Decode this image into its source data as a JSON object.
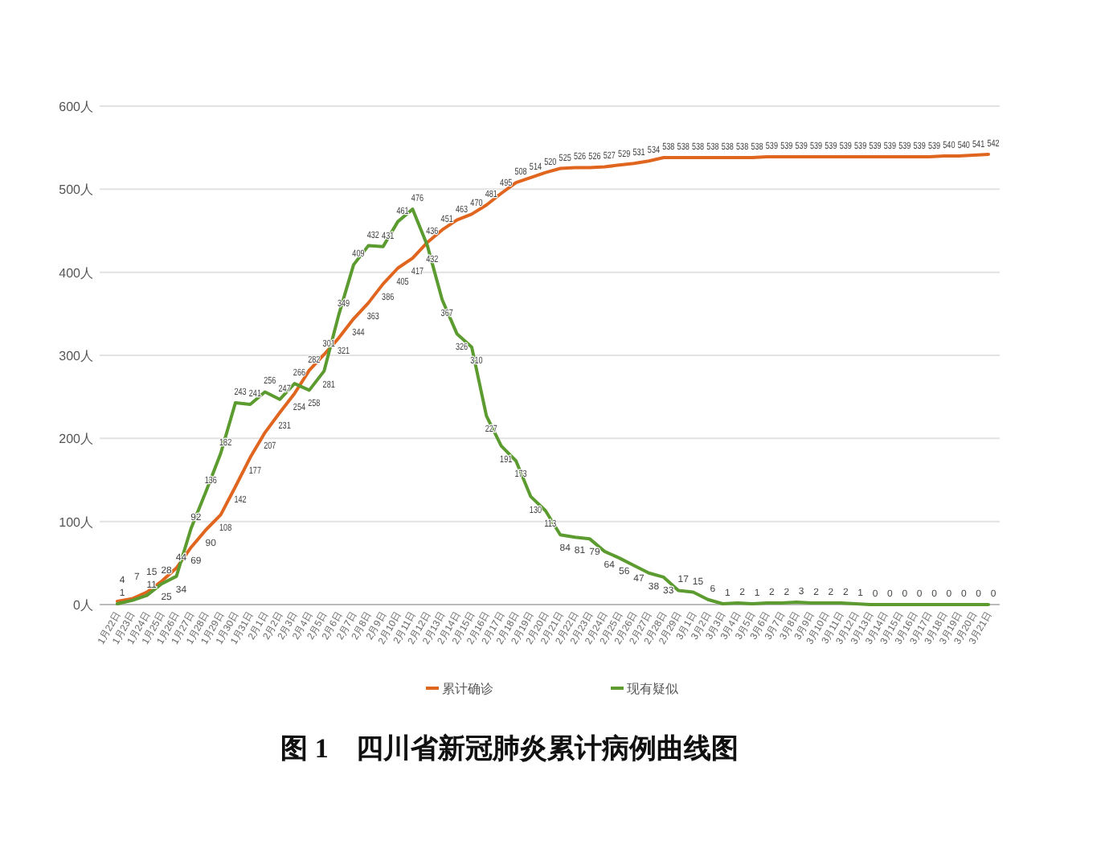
{
  "chart_data": {
    "type": "line",
    "title": "图 1　四川省新冠肺炎累计病例曲线图",
    "categories": [
      "1月22日",
      "1月23日",
      "1月24日",
      "1月25日",
      "1月26日",
      "1月27日",
      "1月28日",
      "1月29日",
      "1月30日",
      "1月31日",
      "2月1日",
      "2月2日",
      "2月3日",
      "2月4日",
      "2月5日",
      "2月6日",
      "2月7日",
      "2月8日",
      "2月9日",
      "2月10日",
      "2月11日",
      "2月12日",
      "2月13日",
      "2月14日",
      "2月15日",
      "2月16日",
      "2月17日",
      "2月18日",
      "2月19日",
      "2月20日",
      "2月21日",
      "2月22日",
      "2月23日",
      "2月24日",
      "2月25日",
      "2月26日",
      "2月27日",
      "2月28日",
      "2月29日",
      "3月1日",
      "3月2日",
      "3月3日",
      "3月4日",
      "3月5日",
      "3月6日",
      "3月7日",
      "3月8日",
      "3月9日",
      "3月10日",
      "3月11日",
      "3月12日",
      "3月13日",
      "3月14日",
      "3月15日",
      "3月16日",
      "3月17日",
      "3月18日",
      "3月19日",
      "3月20日",
      "3月21日"
    ],
    "series": [
      {
        "name": "累计确诊",
        "color": "#e0651f",
        "values": [
          4,
          7,
          15,
          28,
          44,
          69,
          90,
          108,
          142,
          177,
          207,
          231,
          254,
          282,
          301,
          321,
          344,
          363,
          386,
          405,
          417,
          436,
          451,
          463,
          470,
          481,
          495,
          508,
          514,
          520,
          525,
          526,
          526,
          527,
          529,
          531,
          534,
          538,
          538,
          538,
          538,
          538,
          538,
          538,
          539,
          539,
          539,
          539,
          539,
          539,
          539,
          539,
          539,
          539,
          539,
          539,
          540,
          540,
          541,
          542
        ],
        "value_labels": [
          "4",
          "7",
          "15",
          "28",
          "44",
          "69",
          "90",
          "108",
          "142",
          "177",
          "207",
          "231",
          "254",
          "282",
          "301",
          "321",
          "344",
          "363",
          "386",
          "405",
          "417",
          "436",
          "451",
          "463",
          "470",
          "481",
          "495",
          "508",
          "514",
          "520",
          "525",
          "526",
          "526",
          "527",
          "529",
          "531",
          "534",
          "538",
          "538",
          "538",
          "538",
          "538",
          "538",
          "538",
          "539",
          "539",
          "539",
          "539",
          "539",
          "539",
          "539",
          "539",
          "539",
          "539",
          "539",
          "539",
          "540",
          "540",
          "541",
          "542"
        ]
      },
      {
        "name": "现有疑似",
        "color": "#5b9b2f",
        "values": [
          1,
          5,
          11,
          25,
          34,
          92,
          136,
          182,
          243,
          241,
          256,
          247,
          266,
          258,
          281,
          349,
          409,
          432,
          431,
          461,
          476,
          432,
          367,
          326,
          310,
          227,
          191,
          173,
          130,
          113,
          84,
          81,
          79,
          64,
          56,
          47,
          38,
          33,
          17,
          15,
          6,
          1,
          2,
          1,
          2,
          2,
          3,
          2,
          2,
          2,
          1,
          0,
          0,
          0,
          0,
          0,
          0,
          0,
          0,
          0
        ],
        "value_labels": [
          "1",
          null,
          "11",
          "25",
          "34",
          "92",
          "136",
          "182",
          "243",
          "241",
          "256",
          "247",
          "266",
          "258",
          "281",
          "349",
          "409",
          "432",
          "431",
          "461",
          "476",
          "432",
          "367",
          "326",
          "310",
          "227",
          "191",
          "173",
          "130",
          "113",
          "84",
          "81",
          "79",
          "64",
          "56",
          "47",
          "38",
          "33",
          "17",
          "15",
          "6",
          "1",
          "2",
          "1",
          "2",
          "2",
          "3",
          "2",
          "2",
          "2",
          "1",
          "0",
          "0",
          "0",
          "0",
          "0",
          "0",
          "0",
          "0",
          "0"
        ]
      }
    ],
    "ylim": [
      0,
      600
    ],
    "yticks": [
      {
        "value": 0,
        "label": "0人"
      },
      {
        "value": 100,
        "label": "100人"
      },
      {
        "value": 200,
        "label": "200人"
      },
      {
        "value": 300,
        "label": "300人"
      },
      {
        "value": 400,
        "label": "400人"
      },
      {
        "value": 500,
        "label": "500人"
      },
      {
        "value": 600,
        "label": "600人"
      }
    ],
    "grid": "y",
    "legend": "bottom"
  }
}
